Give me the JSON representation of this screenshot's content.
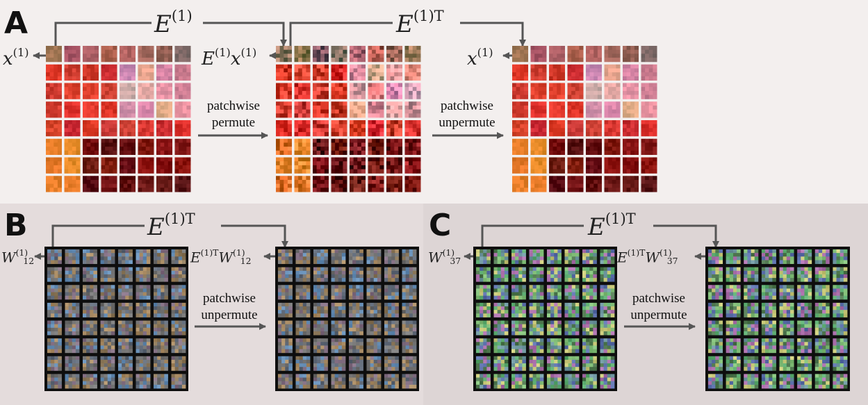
{
  "panels": {
    "A": {
      "label": "A",
      "top_left_op": {
        "base": "E",
        "sup": "(1)"
      },
      "top_right_op": {
        "base": "E",
        "sup": "(1)T"
      },
      "left_var": {
        "base": "x",
        "sup": "(1)"
      },
      "mid_var": {
        "base": "E",
        "sup": "(1)",
        "base2": "x",
        "sup2": "(1)"
      },
      "right_var": {
        "base": "x",
        "sup": "(1)"
      },
      "caption1_line1": "patchwise",
      "caption1_line2": "permute",
      "caption2_line1": "patchwise",
      "caption2_line2": "unpermute"
    },
    "B": {
      "label": "B",
      "op": {
        "base": "E",
        "sup": "(1)T"
      },
      "left_var": {
        "base": "W",
        "sup": "(1)",
        "sub": "12"
      },
      "right_var": {
        "base": "E",
        "sup": "(1)T",
        "base2": "W",
        "sup2": "(1)",
        "sub2": "12"
      },
      "caption_line1": "patchwise",
      "caption_line2": "unpermute"
    },
    "C": {
      "label": "C",
      "op": {
        "base": "E",
        "sup": "(1)T"
      },
      "left_var": {
        "base": "W",
        "sup": "(1)",
        "sub": "37"
      },
      "right_var": {
        "base": "E",
        "sup": "(1)T",
        "base2": "W",
        "sup2": "(1)",
        "sub2": "37"
      },
      "caption_line1": "patchwise",
      "caption_line2": "unpermute"
    }
  },
  "colors": {
    "arrow": "#555555",
    "red_image": "#c0302c",
    "dark_filter_bg": "#111111"
  }
}
